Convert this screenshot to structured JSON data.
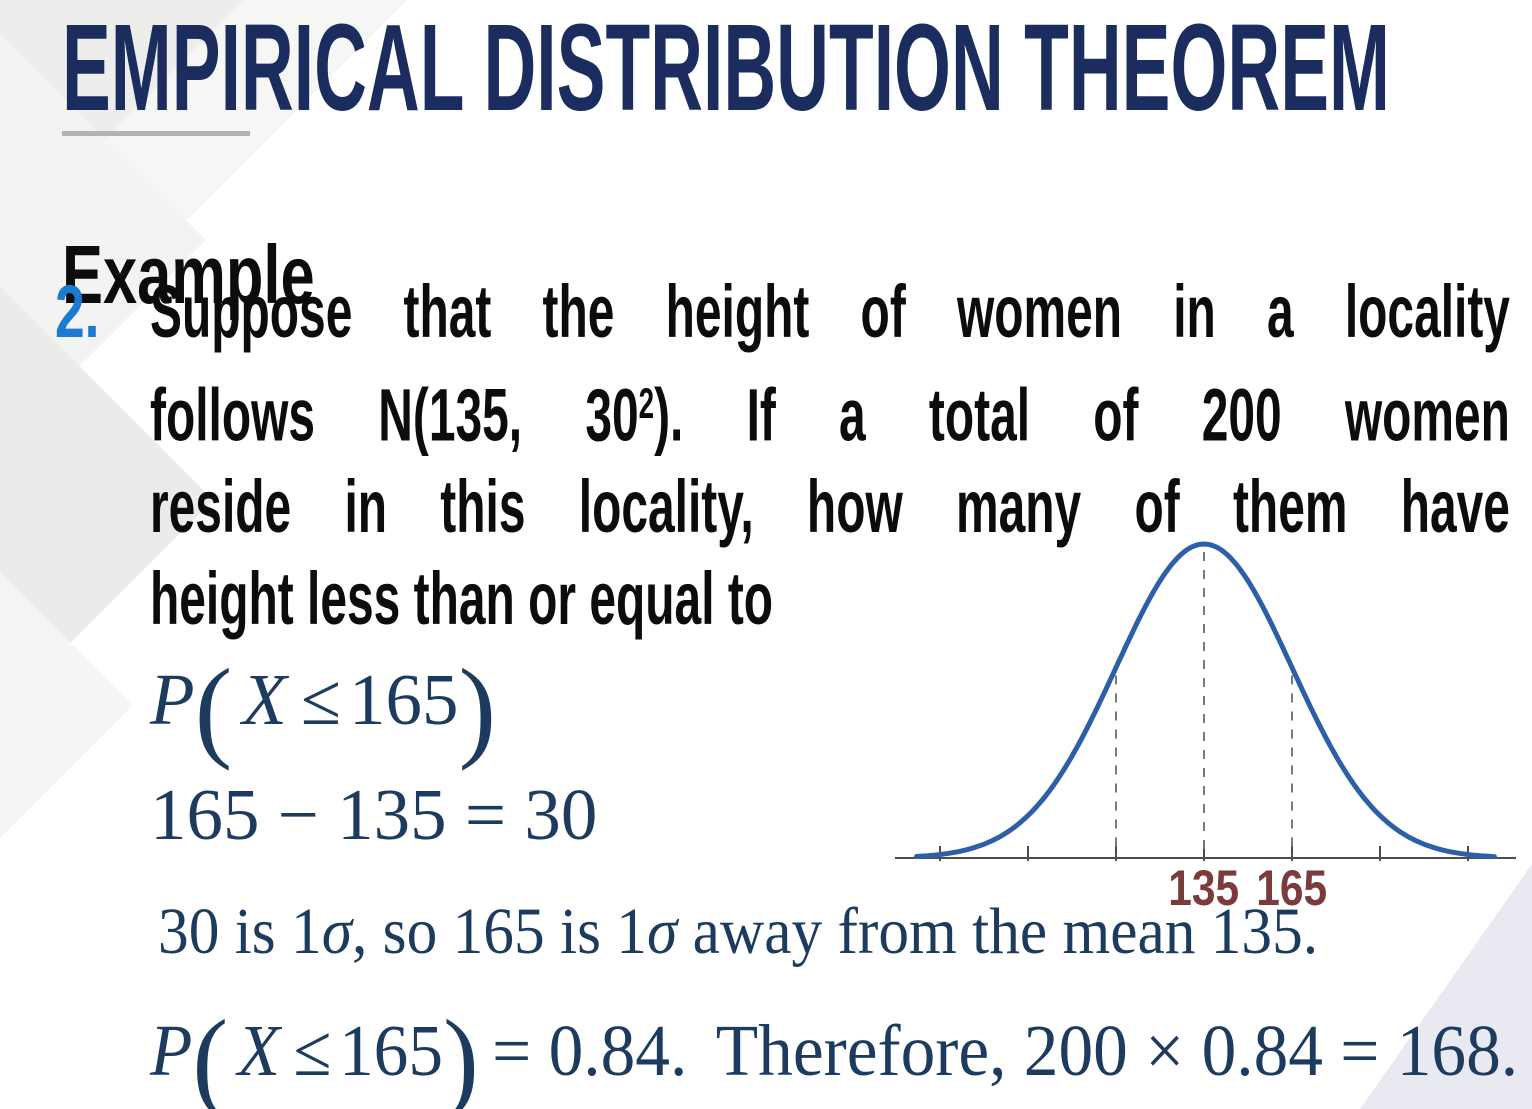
{
  "slide": {
    "title": "EMPIRICAL DISTRIBUTION THEOREM",
    "example_heading": "Example",
    "item_number": "2.",
    "problem": {
      "line1": "Suppose that the height of women in a locality",
      "line2_pre": "follows N(135, 30",
      "line2_sup": "2",
      "line2_post": "). If a total of 200 women",
      "line3": "reside in this locality, how many of them have",
      "line4": "height less than or equal to"
    },
    "math": {
      "prob": {
        "P": "P",
        "open": "(",
        "X": "X",
        "leq": "≤",
        "value": "165",
        "close": ")"
      },
      "subtraction": "165 − 135 = 30",
      "sigma_line": {
        "pre": "30 is 1",
        "sigma1": "σ",
        "mid": ", so 165 is 1",
        "sigma2": "σ",
        "post": " away from the mean 135."
      },
      "conclusion": {
        "P": "P",
        "open": "(",
        "X": "X",
        "leq": "≤",
        "value": "165",
        "close": ")",
        "eq": "= 0.84.",
        "rest": "Therefore, 200 × 0.84 = 168."
      }
    },
    "colors": {
      "title_navy": "#1a2d5e",
      "body_black": "#0c0c0c",
      "item_number_blue": "#1b7ad1",
      "math_navy": "#1d3a5f",
      "underline_gray": "#b3b3b3",
      "corner_triangle": "#e9e9f1"
    }
  },
  "chart_data": {
    "type": "line",
    "subtype": "normal-distribution-bell-curve",
    "title": "",
    "xlabel": "",
    "ylabel": "",
    "grid": false,
    "legend": "none",
    "mean": 135,
    "sd": 30,
    "x_ticks": [
      45,
      75,
      105,
      135,
      165,
      195,
      225
    ],
    "curve_range": [
      37,
      234
    ],
    "dashed_lines_at": [
      105,
      135,
      165
    ],
    "labeled_ticks": [
      {
        "value": 135,
        "label": "135"
      },
      {
        "value": 165,
        "label": "165"
      }
    ],
    "curve_color": "#2d5fa9",
    "axis_color": "#4d4d4d",
    "dash_color": "#7a7a7a",
    "tick_label_color": "#7b3a3b"
  }
}
